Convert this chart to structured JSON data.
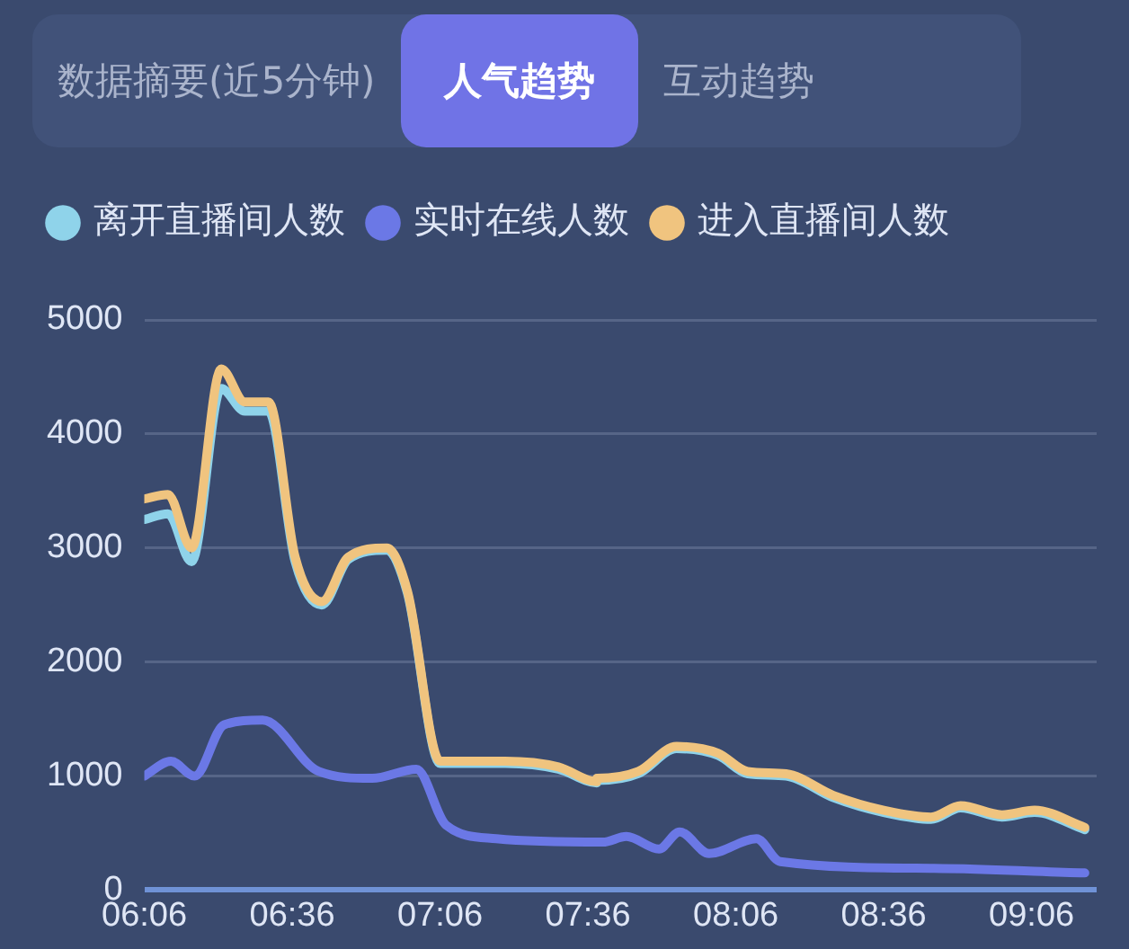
{
  "chart_data": {
    "type": "line",
    "annotations": [
      "数据摘要(近5分钟)",
      "人气趋势",
      "互动趋势"
    ],
    "xlim": [
      6.1,
      9.32
    ],
    "xticks": [
      {
        "value": 6.1,
        "label": "06:06"
      },
      {
        "value": 6.6,
        "label": "06:36"
      },
      {
        "value": 7.1,
        "label": "07:06"
      },
      {
        "value": 7.6,
        "label": "07:36"
      },
      {
        "value": 8.1,
        "label": "08:06"
      },
      {
        "value": 8.6,
        "label": "08:36"
      },
      {
        "value": 9.1,
        "label": "09:06"
      }
    ],
    "ylim": [
      0,
      5000
    ],
    "yticks": [
      0,
      1000,
      2000,
      3000,
      4000,
      5000
    ],
    "grid": "y",
    "legend": "top",
    "marker": "none",
    "line_style": "solid",
    "series": [
      {
        "name": "离开直播间人数",
        "color": "#8fd3ea",
        "x": [
          6.1,
          6.18,
          6.26,
          6.36,
          6.44,
          6.52,
          6.61,
          6.7,
          6.79,
          6.92,
          6.99,
          7.1,
          7.32,
          7.5,
          7.63,
          7.63,
          7.77,
          7.9,
          8.04,
          8.14,
          8.27,
          8.43,
          8.6,
          8.76,
          8.86,
          9.0,
          9.11,
          9.28
        ],
        "values": [
          3250,
          3300,
          2880,
          4400,
          4200,
          4200,
          2880,
          2500,
          2900,
          2980,
          2600,
          1110,
          1110,
          1060,
          940,
          960,
          1020,
          1240,
          1180,
          1020,
          1000,
          810,
          680,
          620,
          720,
          640,
          680,
          530
        ]
      },
      {
        "name": "实时在线人数",
        "color": "#6b78e6",
        "x": [
          6.1,
          6.19,
          6.27,
          6.37,
          6.5,
          6.69,
          6.87,
          7.02,
          7.12,
          7.29,
          7.65,
          7.73,
          7.84,
          7.91,
          8.01,
          8.17,
          8.25,
          8.77,
          9.28
        ],
        "values": [
          1000,
          1130,
          1000,
          1450,
          1490,
          1040,
          980,
          1060,
          570,
          450,
          420,
          470,
          360,
          510,
          320,
          450,
          250,
          190,
          150
        ]
      },
      {
        "name": "进入直播间人数",
        "color": "#f0c47f",
        "x": [
          6.1,
          6.18,
          6.26,
          6.36,
          6.44,
          6.52,
          6.61,
          6.7,
          6.79,
          6.92,
          6.99,
          7.1,
          7.32,
          7.5,
          7.63,
          7.63,
          7.77,
          7.9,
          8.04,
          8.14,
          8.27,
          8.43,
          8.6,
          8.76,
          8.86,
          9.0,
          9.11,
          9.28
        ],
        "values": [
          3430,
          3470,
          3000,
          4570,
          4280,
          4280,
          2920,
          2530,
          2920,
          3000,
          2620,
          1130,
          1130,
          1080,
          950,
          980,
          1040,
          1260,
          1200,
          1040,
          1020,
          830,
          700,
          640,
          740,
          660,
          700,
          550
        ]
      }
    ]
  }
}
